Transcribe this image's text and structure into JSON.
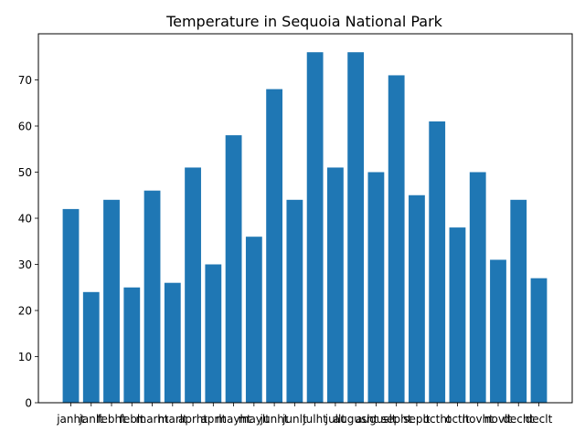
{
  "chart_data": {
    "type": "bar",
    "title": "Temperature in Sequoia National Park",
    "xlabel": "",
    "ylabel": "",
    "categories": [
      "janht",
      "janlt",
      "febht",
      "feblt",
      "marht",
      "marlt",
      "aprht",
      "aprlt",
      "mayht",
      "maylt",
      "junht",
      "junlt",
      "julht",
      "jullt",
      "augusht",
      "auguslt",
      "sepht",
      "seplt",
      "octht",
      "octlt",
      "novht",
      "novlt",
      "decht",
      "declt"
    ],
    "values": [
      42,
      24,
      44,
      25,
      46,
      26,
      51,
      30,
      58,
      36,
      68,
      44,
      76,
      51,
      76,
      50,
      71,
      45,
      61,
      38,
      50,
      31,
      44,
      27
    ],
    "ylim": [
      0,
      80
    ],
    "yticks": [
      0,
      10,
      20,
      30,
      40,
      50,
      60,
      70
    ],
    "bar_color": "#1f77b4",
    "grid": false,
    "legend": "none"
  }
}
